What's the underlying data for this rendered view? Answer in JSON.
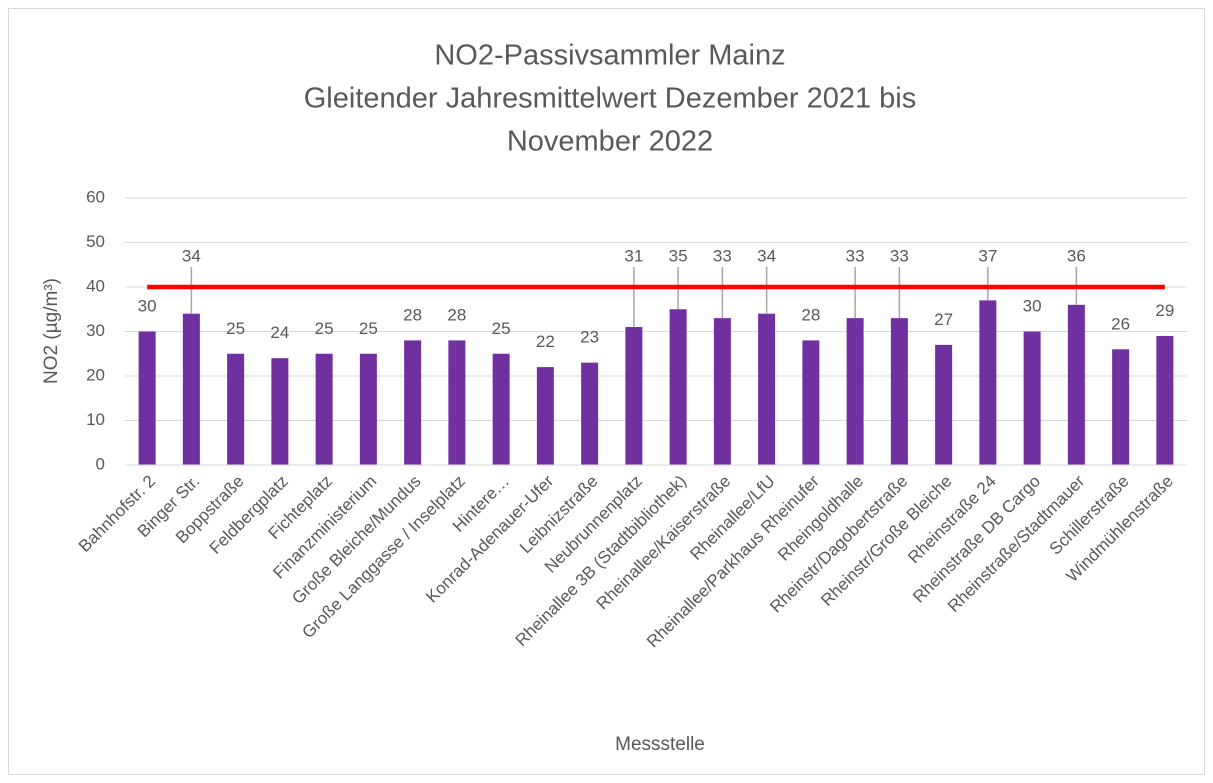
{
  "chart_data": {
    "type": "bar",
    "title": [
      "NO2-Passivsammler Mainz",
      "Gleitender Jahresmittelwert Dezember 2021 bis",
      "November 2022"
    ],
    "x_label": "Messstelle",
    "y_label": "NO2 (µg/m³)",
    "categories": [
      "Bahnhofstr. 2",
      "Binger Str.",
      "Boppstraße",
      "Feldbergplatz",
      "Fichteplatz",
      "Finanzministerium",
      "Große Bleiche/Mundus",
      "Große Langgasse / Inselplatz",
      "Hintere…",
      "Konrad-Adenauer-Ufer",
      "Leibnizstraße",
      "Neubrunnenplatz",
      "Rheinallee 3B (Stadtbibliothek)",
      "Rheinallee/Kaiserstraße",
      "Rheinallee/LfU",
      "Rheinallee/Parkhaus Rheinufer",
      "Rheingoldhalle",
      "Rheinstr/Dagobertstraße",
      "Rheinstr/Große Bleiche",
      "Rheinstraße 24",
      "Rheinstraße DB Cargo",
      "Rheinstraße/Stadtmauer",
      "Schillerstraße",
      "Windmühlenstraße"
    ],
    "values": [
      30,
      34,
      25,
      24,
      25,
      25,
      28,
      28,
      25,
      22,
      23,
      31,
      35,
      33,
      34,
      28,
      33,
      33,
      27,
      37,
      30,
      36,
      26,
      29
    ],
    "color": "#7030a0",
    "threshold": {
      "value": 40,
      "color": "#ff0000"
    },
    "ylim": [
      0,
      60
    ],
    "yticks": [
      0,
      10,
      20,
      30,
      40,
      50,
      60
    ],
    "grid": true
  }
}
